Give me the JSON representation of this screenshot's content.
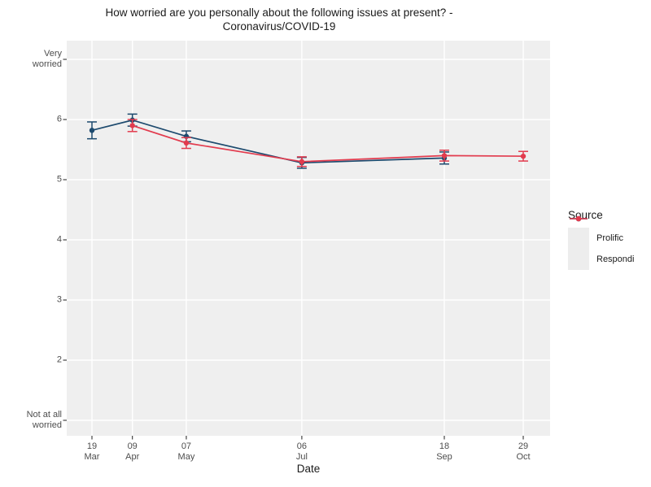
{
  "chart_data": {
    "type": "line",
    "title": "How worried are you personally about the following issues at present? - Coronavirus/COVID-19",
    "title_lines": [
      "How worried are you personally about the following issues at present? -",
      "Coronavirus/COVID-19"
    ],
    "xlabel": "Date",
    "ylabel": "",
    "legend_title": "Source",
    "legend_position": "right",
    "grid": "white major gridlines on grey panel, no minor gridlines",
    "y_axis": {
      "scale_note": "7-point worry scale: 1 = Not at all worried, 7 = Very worried",
      "range": [
        0.75,
        7.3
      ],
      "ticks": [
        {
          "value": 7,
          "lines": [
            "Very",
            "worried"
          ]
        },
        {
          "value": 6,
          "lines": [
            "6"
          ]
        },
        {
          "value": 5,
          "lines": [
            "5"
          ]
        },
        {
          "value": 4,
          "lines": [
            "4"
          ]
        },
        {
          "value": 3,
          "lines": [
            "3"
          ]
        },
        {
          "value": 2,
          "lines": [
            "2"
          ]
        },
        {
          "value": 1,
          "lines": [
            "Not at all",
            "worried"
          ]
        }
      ]
    },
    "x_axis": {
      "unit": "date (days from 19 Mar)",
      "range_days": [
        -13,
        238
      ],
      "ticks": [
        {
          "day": 0,
          "lines": [
            "19",
            "Mar"
          ]
        },
        {
          "day": 21,
          "lines": [
            "09",
            "Apr"
          ]
        },
        {
          "day": 49,
          "lines": [
            "07",
            "May"
          ]
        },
        {
          "day": 109,
          "lines": [
            "06",
            "Jul"
          ]
        },
        {
          "day": 183,
          "lines": [
            "18",
            "Sep"
          ]
        },
        {
          "day": 224,
          "lines": [
            "29",
            "Oct"
          ]
        }
      ]
    },
    "series": [
      {
        "name": "Prolific",
        "color": "#1d4a6e",
        "points": [
          {
            "date": "19 Mar",
            "day": 0,
            "value": 5.82,
            "error": 0.14
          },
          {
            "date": "09 Apr",
            "day": 21,
            "value": 5.99,
            "error": 0.1
          },
          {
            "date": "07 May",
            "day": 49,
            "value": 5.72,
            "error": 0.09
          },
          {
            "date": "06 Jul",
            "day": 109,
            "value": 5.28,
            "error": 0.09
          },
          {
            "date": "18 Sep",
            "day": 183,
            "value": 5.36,
            "error": 0.1
          }
        ]
      },
      {
        "name": "Respondi",
        "color": "#e23b4e",
        "points": [
          {
            "date": "09 Apr",
            "day": 21,
            "value": 5.9,
            "error": 0.1
          },
          {
            "date": "07 May",
            "day": 49,
            "value": 5.61,
            "error": 0.09
          },
          {
            "date": "06 Jul",
            "day": 109,
            "value": 5.3,
            "error": 0.08
          },
          {
            "date": "18 Sep",
            "day": 183,
            "value": 5.4,
            "error": 0.09
          },
          {
            "date": "29 Oct",
            "day": 224,
            "value": 5.39,
            "error": 0.08
          }
        ]
      }
    ],
    "colors": {
      "panel_background": "#efefef",
      "gridline": "#ffffff",
      "axis_text": "#4d4d4d",
      "tick_mark": "#333333",
      "text": "#1a1a1a",
      "legend_key_background": "#ededed"
    }
  }
}
